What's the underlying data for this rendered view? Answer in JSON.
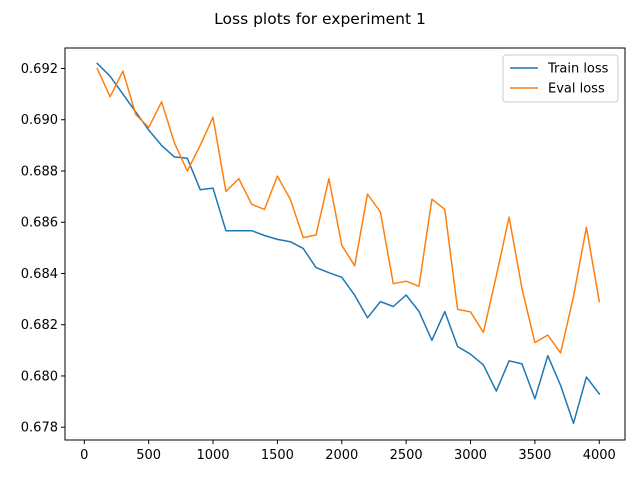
{
  "chart_data": {
    "type": "line",
    "title": "Loss plots for experiment 1",
    "xlabel": "",
    "ylabel": "",
    "xlim": [
      -150,
      4200
    ],
    "ylim": [
      0.6775,
      0.6928
    ],
    "xticks": [
      0,
      500,
      1000,
      1500,
      2000,
      2500,
      3000,
      3500,
      4000
    ],
    "yticks": [
      0.678,
      0.68,
      0.682,
      0.684,
      0.686,
      0.688,
      0.69,
      0.692
    ],
    "grid": false,
    "legend": "top-right",
    "x": [
      100,
      200,
      300,
      400,
      500,
      600,
      700,
      800,
      900,
      1000,
      1100,
      1200,
      1300,
      1400,
      1500,
      1600,
      1700,
      1800,
      1900,
      2000,
      2100,
      2200,
      2300,
      2400,
      2500,
      2600,
      2700,
      2800,
      2900,
      3000,
      3100,
      3200,
      3300,
      3400,
      3500,
      3600,
      3700,
      3800,
      3900,
      4000
    ],
    "series": [
      {
        "name": "Train loss",
        "color": "#1f77b4",
        "values": [
          0.6922,
          0.6917,
          0.691,
          0.6903,
          0.6896,
          0.689,
          0.68855,
          0.6885,
          0.68727,
          0.68733,
          0.68567,
          0.68567,
          0.68567,
          0.68548,
          0.68533,
          0.68524,
          0.68498,
          0.68423,
          0.68403,
          0.68385,
          0.68315,
          0.68227,
          0.6829,
          0.68271,
          0.68316,
          0.68252,
          0.68139,
          0.68251,
          0.68115,
          0.68085,
          0.68043,
          0.67941,
          0.68059,
          0.68047,
          0.67911,
          0.68079,
          0.67963,
          0.67815,
          0.67996,
          0.6793
        ]
      },
      {
        "name": "Eval loss",
        "color": "#ff7f0e",
        "values": [
          0.692,
          0.6909,
          0.6919,
          0.6902,
          0.6897,
          0.6907,
          0.6891,
          0.688,
          0.689,
          0.6901,
          0.6872,
          0.6877,
          0.6867,
          0.6865,
          0.6878,
          0.6869,
          0.6854,
          0.6855,
          0.6877,
          0.6851,
          0.6843,
          0.6871,
          0.6864,
          0.6836,
          0.6837,
          0.6835,
          0.6869,
          0.6865,
          0.6826,
          0.6825,
          0.6817,
          0.6839,
          0.6862,
          0.6834,
          0.6813,
          0.6816,
          0.6809,
          0.6831,
          0.6858,
          0.6829
        ]
      }
    ]
  }
}
